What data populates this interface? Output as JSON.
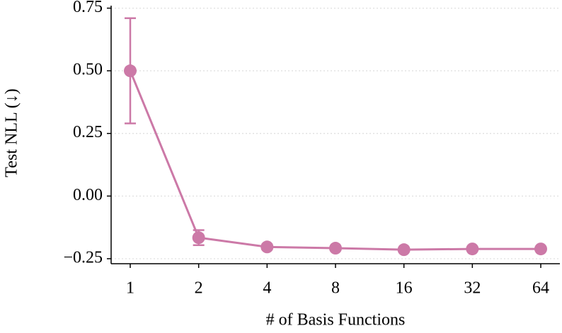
{
  "chart_data": {
    "type": "line",
    "x_label": "# of Basis Functions",
    "y_label": "Test NLL (↓)",
    "categories": [
      "1",
      "2",
      "4",
      "8",
      "16",
      "32",
      "64"
    ],
    "series": [
      {
        "name": null,
        "color": "#cc79a7",
        "values": [
          0.5,
          -0.166,
          -0.203,
          -0.208,
          -0.214,
          -0.211,
          -0.211
        ],
        "errors": [
          0.21,
          0.03,
          0.01,
          0.008,
          0.006,
          0.006,
          0.006
        ]
      }
    ],
    "ylim": [
      -0.27,
      0.76
    ],
    "yticks": [
      {
        "value": -0.25,
        "label": "−0.25"
      },
      {
        "value": 0,
        "label": "0.00"
      },
      0.25,
      {
        "value": 0.5,
        "label": "0.50"
      },
      0.75
    ],
    "grid": true
  }
}
